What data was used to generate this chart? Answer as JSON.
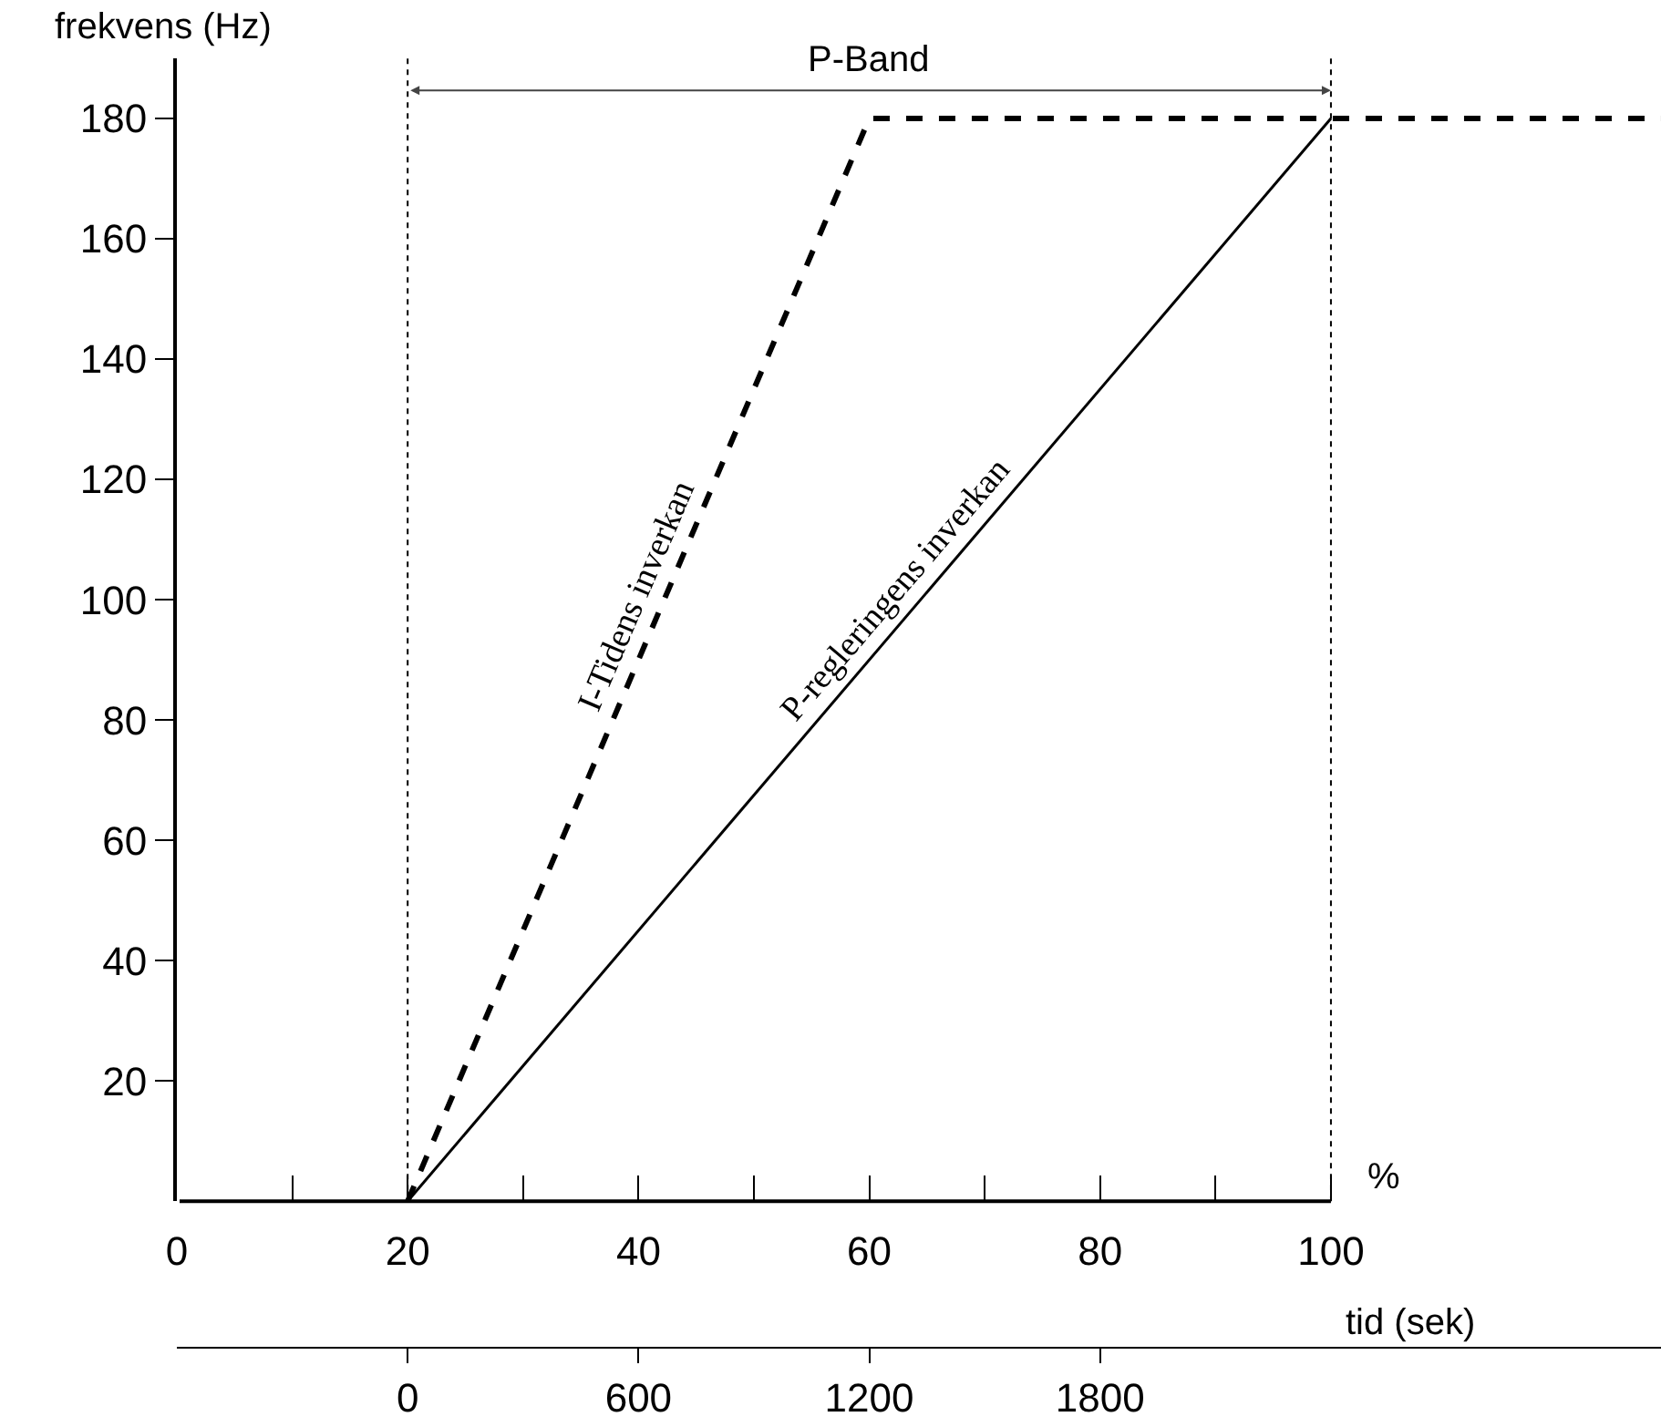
{
  "chart_data": {
    "type": "line",
    "xlabel": "%",
    "ylabel": "frekvens (Hz)",
    "x2label": "tid (sek)",
    "xlim": [
      0,
      128.6
    ],
    "xticks": [
      0,
      {
        "value": 10,
        "label": null
      },
      20,
      {
        "value": 30,
        "label": null
      },
      40,
      {
        "value": 50,
        "label": null
      },
      60,
      {
        "value": 70,
        "label": null
      },
      80,
      {
        "value": 90,
        "label": null
      },
      100
    ],
    "ylim": [
      0,
      190
    ],
    "yticks": [
      20,
      40,
      60,
      80,
      100,
      120,
      140,
      160,
      180
    ],
    "x2lim": [
      -600,
      3258
    ],
    "x2ticks": [
      0,
      600,
      1200,
      1800
    ],
    "series": [
      {
        "name": "I-Tidens inverkan",
        "color": "#000000",
        "line_style": "dashed",
        "x": [
          20,
          60,
          128.6
        ],
        "values": [
          0,
          180,
          180
        ]
      },
      {
        "name": "P-regleringens inverkan",
        "color": "#000000",
        "line_style": "solid",
        "x": [
          20,
          100
        ],
        "values": [
          0,
          180
        ]
      }
    ],
    "ref_lines": [
      {
        "axis": "x",
        "value": 20,
        "color": "#000000",
        "line_style": "dotted"
      },
      {
        "axis": "x",
        "value": 100,
        "color": "#000000",
        "line_style": "dotted"
      }
    ],
    "annotations": [
      "P-Band"
    ]
  }
}
